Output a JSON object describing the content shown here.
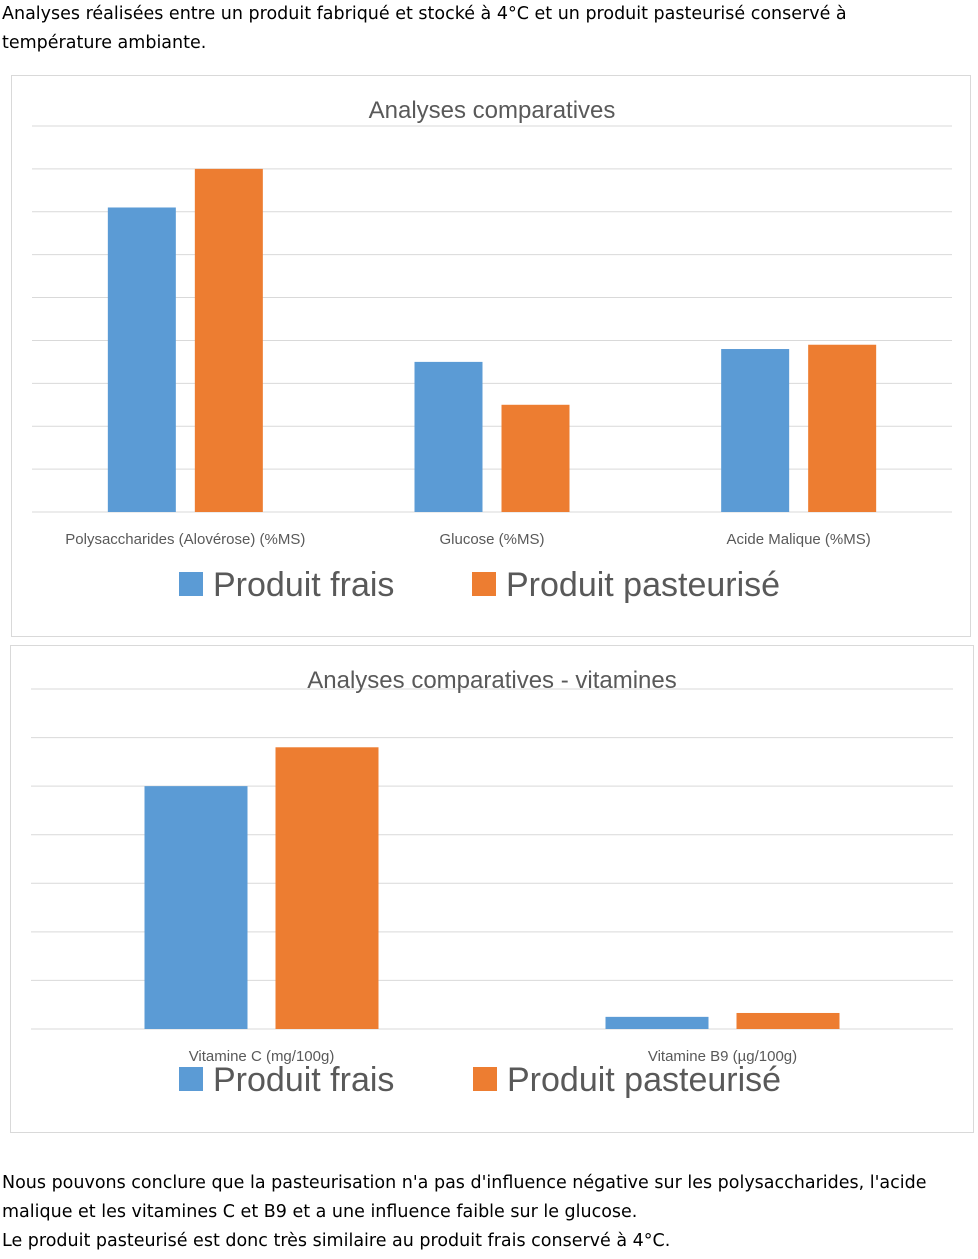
{
  "intro_text": "Analyses réalisées entre un produit fabriqué et stocké à 4°C et un produit pasteurisé conservé à température ambiante.",
  "conclusion": {
    "line1": "Nous pouvons conclure que la pasteurisation n'a pas d'influence négative sur les polysaccharides, l'acide malique et les vitamines C et B9 et a une influence faible sur le glucose.",
    "line2": "Le produit pasteurisé est donc très similaire au produit frais conservé à 4°C."
  },
  "colors": {
    "frais": "#5b9bd5",
    "pasteurise": "#ed7d31",
    "grid": "#d9d9d9",
    "title": "#595959",
    "label": "#595959"
  },
  "chart_data": [
    {
      "type": "bar",
      "title": "Analyses comparatives",
      "categories": [
        "Polysaccharides (Alovérose) (%MS)",
        "Glucose (%MS)",
        "Acide Malique (%MS)"
      ],
      "series": [
        {
          "name": "Produit frais",
          "values": [
            7.1,
            3.5,
            3.8
          ]
        },
        {
          "name": "Produit pasteurisé",
          "values": [
            8.0,
            2.5,
            3.9
          ]
        }
      ],
      "ylim": [
        0,
        9
      ],
      "gridlines": 9,
      "grid": true,
      "legend_position": "bottom",
      "y_tick_labels_shown": false
    },
    {
      "type": "bar",
      "title": "Analyses comparatives - vitamines",
      "categories": [
        "Vitamine C (mg/100g)",
        "Vitamine B9 (µg/100g)"
      ],
      "series": [
        {
          "name": "Produit frais",
          "values": [
            500,
            25
          ]
        },
        {
          "name": "Produit pasteurisé",
          "values": [
            580,
            33
          ]
        }
      ],
      "ylim": [
        0,
        700
      ],
      "gridlines": 7,
      "grid": true,
      "legend_position": "bottom",
      "y_tick_labels_shown": false
    }
  ]
}
